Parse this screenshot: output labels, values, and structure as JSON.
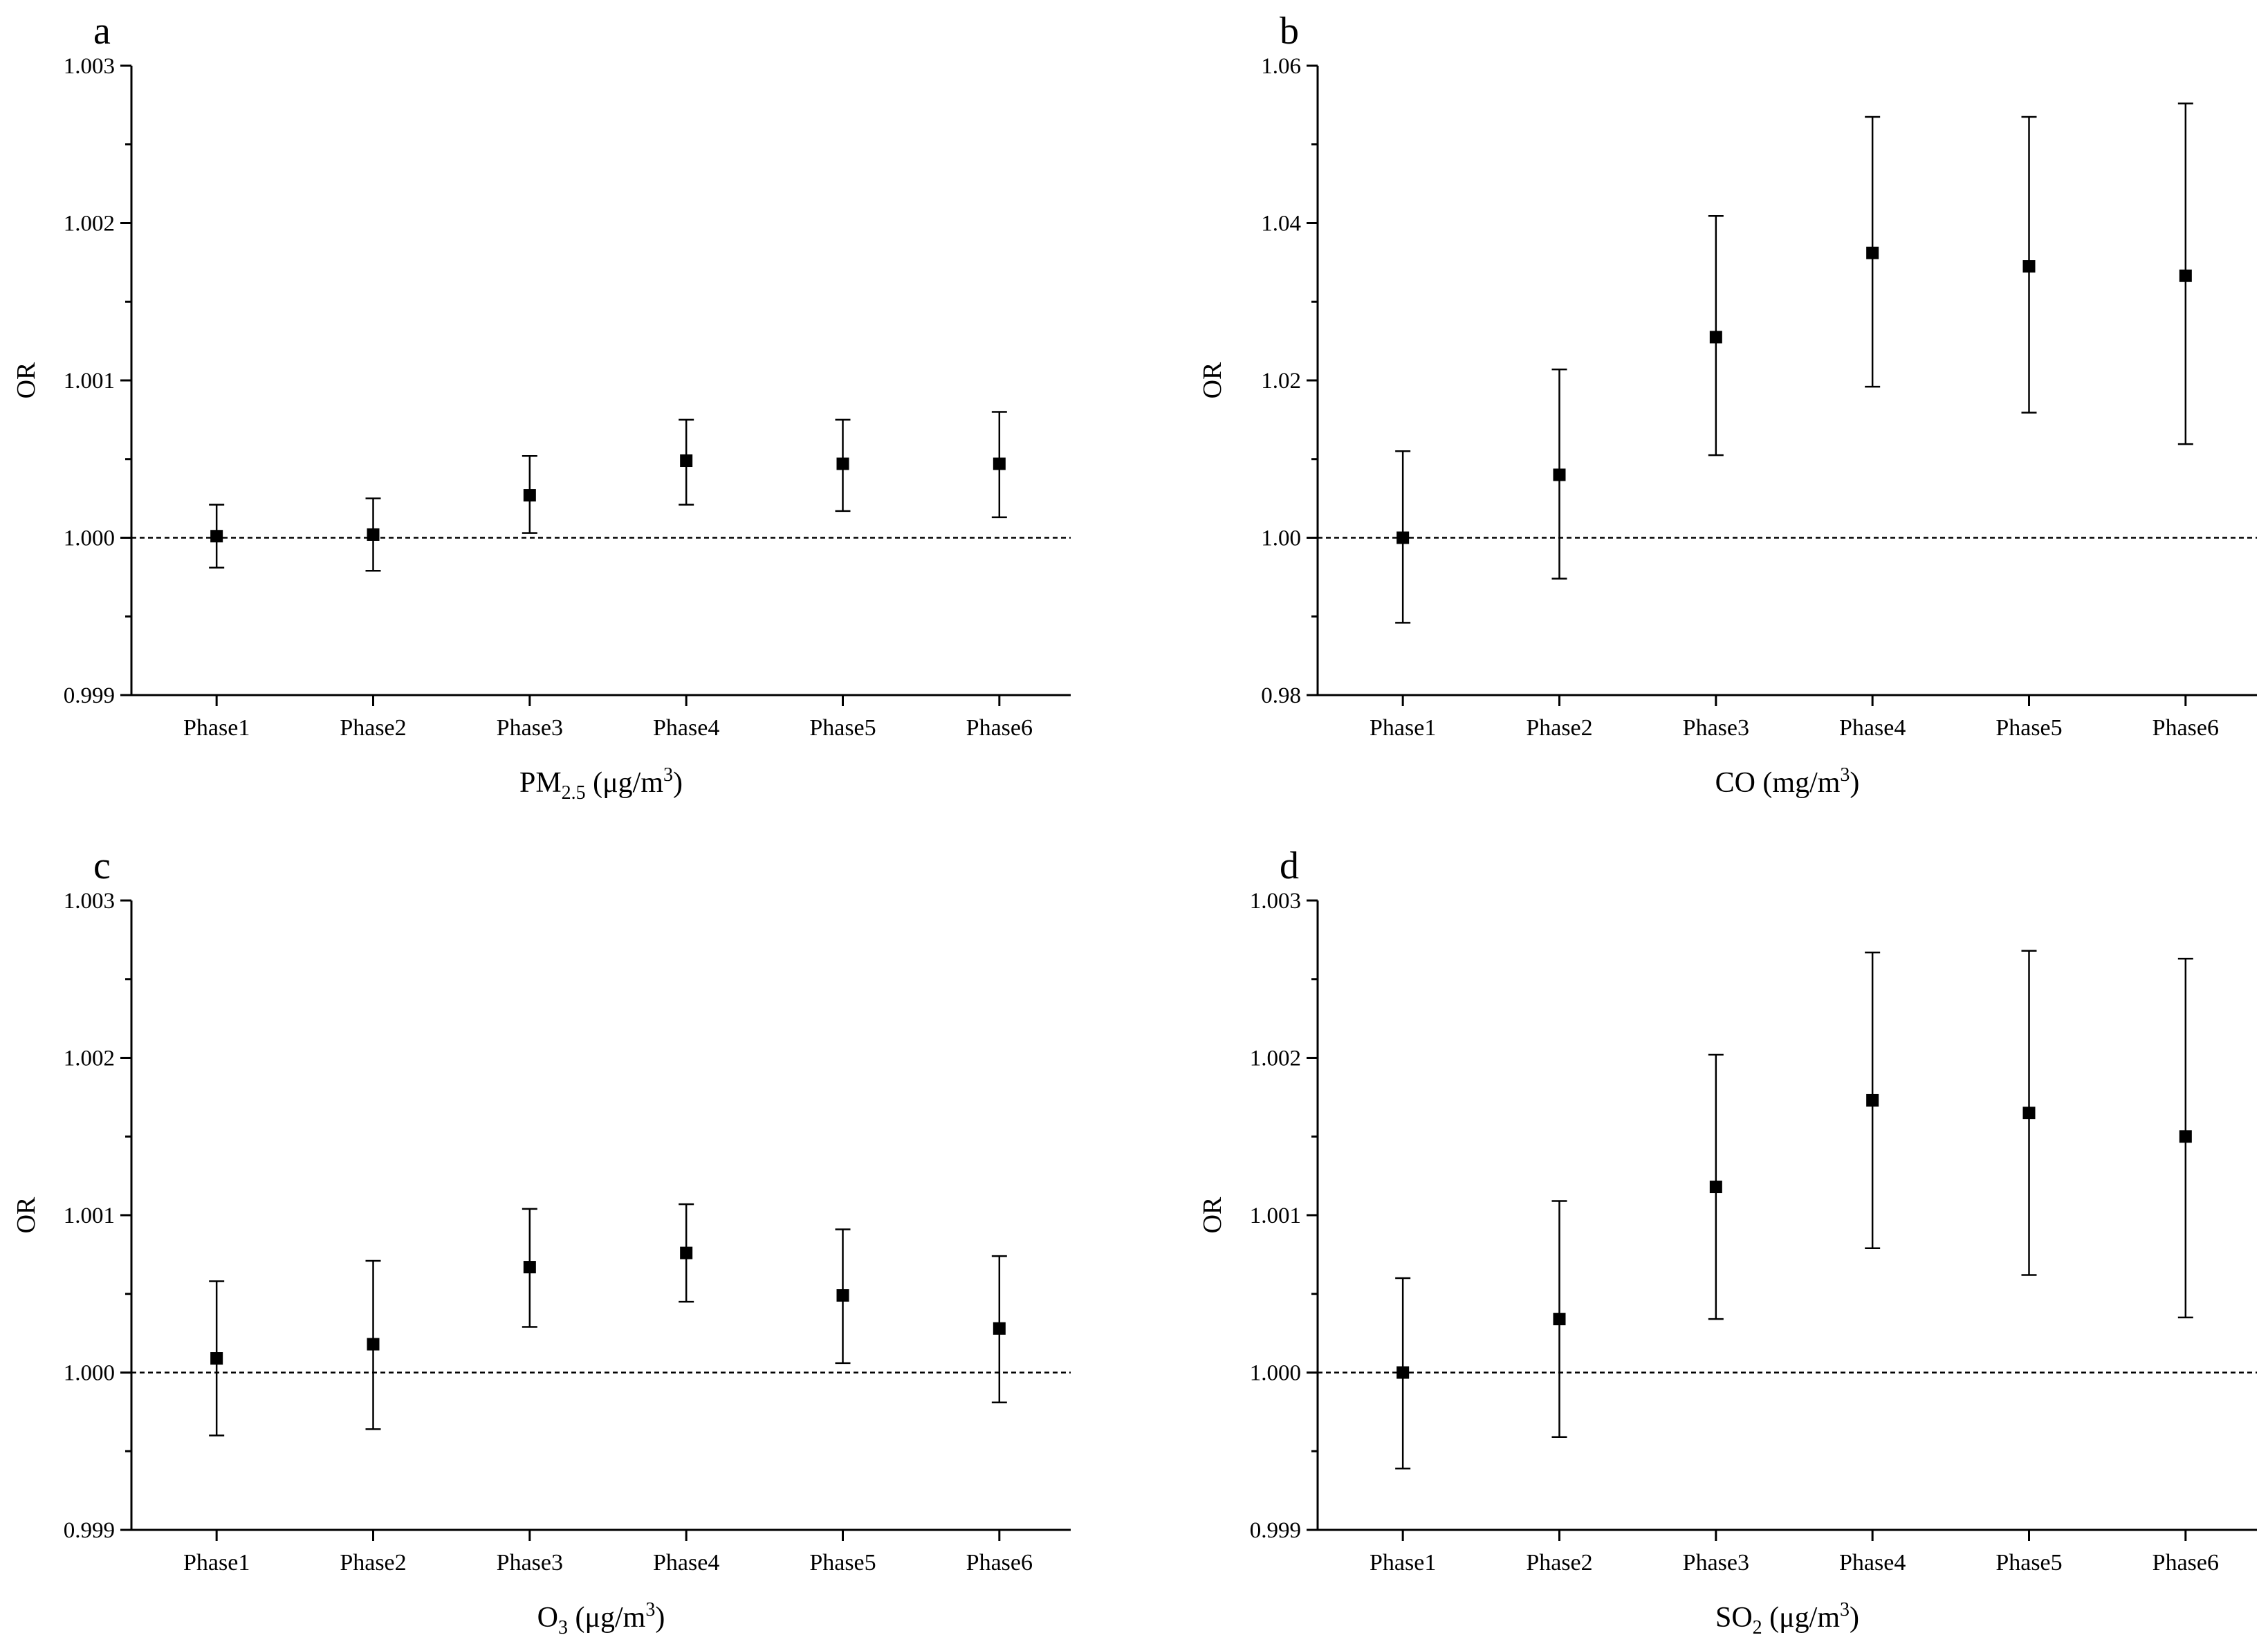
{
  "chart_data": [
    {
      "type": "scatter",
      "panel_label": "a",
      "ylabel": "OR",
      "xlabel": {
        "main": "PM",
        "sub": "2.5",
        "unit_pre": " (μg/m",
        "unit_sup": "3",
        "unit_post": ")"
      },
      "categories": [
        "Phase1",
        "Phase2",
        "Phase3",
        "Phase4",
        "Phase5",
        "Phase6"
      ],
      "ylim": [
        0.999,
        1.003
      ],
      "yticks": [
        "0.999",
        "1.000",
        "1.001",
        "1.002",
        "1.003"
      ],
      "reference_line": 1.0,
      "series": [
        {
          "name": "OR",
          "values": [
            1.00001,
            1.00002,
            1.00027,
            1.00049,
            1.00047,
            1.00047
          ],
          "lower": [
            0.99981,
            0.99979,
            1.00003,
            1.00021,
            1.00017,
            1.00013
          ],
          "upper": [
            1.00021,
            1.00025,
            1.00052,
            1.00075,
            1.00075,
            1.0008
          ]
        }
      ]
    },
    {
      "type": "scatter",
      "panel_label": "b",
      "ylabel": "OR",
      "xlabel": {
        "main": "CO",
        "sub": "",
        "unit_pre": " (mg/m",
        "unit_sup": "3",
        "unit_post": ")"
      },
      "categories": [
        "Phase1",
        "Phase2",
        "Phase3",
        "Phase4",
        "Phase5",
        "Phase6"
      ],
      "ylim": [
        0.98,
        1.06
      ],
      "yticks": [
        "0.98",
        "1.00",
        "1.02",
        "1.04",
        "1.06"
      ],
      "reference_line": 1.0,
      "series": [
        {
          "name": "OR",
          "values": [
            1.0,
            1.008,
            1.0255,
            1.0362,
            1.0345,
            1.0333
          ],
          "lower": [
            0.9892,
            0.9948,
            1.0105,
            1.0192,
            1.0159,
            1.0119
          ],
          "upper": [
            1.011,
            1.0214,
            1.0409,
            1.0535,
            1.0535,
            1.0552
          ]
        }
      ]
    },
    {
      "type": "scatter",
      "panel_label": "c",
      "ylabel": "OR",
      "xlabel": {
        "main": "O",
        "sub": "3",
        "unit_pre": " (μg/m",
        "unit_sup": "3",
        "unit_post": ")"
      },
      "categories": [
        "Phase1",
        "Phase2",
        "Phase3",
        "Phase4",
        "Phase5",
        "Phase6"
      ],
      "ylim": [
        0.999,
        1.003
      ],
      "yticks": [
        "0.999",
        "1.000",
        "1.001",
        "1.002",
        "1.003"
      ],
      "reference_line": 1.0,
      "series": [
        {
          "name": "OR",
          "values": [
            1.00009,
            1.00018,
            1.00067,
            1.00076,
            1.00049,
            1.00028
          ],
          "lower": [
            0.9996,
            0.99964,
            1.00029,
            1.00045,
            1.00006,
            0.99981
          ],
          "upper": [
            1.00058,
            1.00071,
            1.00104,
            1.00107,
            1.00091,
            1.00074
          ]
        }
      ]
    },
    {
      "type": "scatter",
      "panel_label": "d",
      "ylabel": "OR",
      "xlabel": {
        "main": "SO",
        "sub": "2",
        "unit_pre": " (μg/m",
        "unit_sup": "3",
        "unit_post": ")"
      },
      "categories": [
        "Phase1",
        "Phase2",
        "Phase3",
        "Phase4",
        "Phase5",
        "Phase6"
      ],
      "ylim": [
        0.999,
        1.003
      ],
      "yticks": [
        "0.999",
        "1.000",
        "1.001",
        "1.002",
        "1.003"
      ],
      "reference_line": 1.0,
      "series": [
        {
          "name": "OR",
          "values": [
            1.0,
            1.00034,
            1.00118,
            1.00173,
            1.00165,
            1.0015
          ],
          "lower": [
            0.99939,
            0.99959,
            1.00034,
            1.00079,
            1.00062,
            1.00035
          ],
          "upper": [
            1.0006,
            1.00109,
            1.00202,
            1.00267,
            1.00268,
            1.00263
          ]
        }
      ]
    }
  ]
}
